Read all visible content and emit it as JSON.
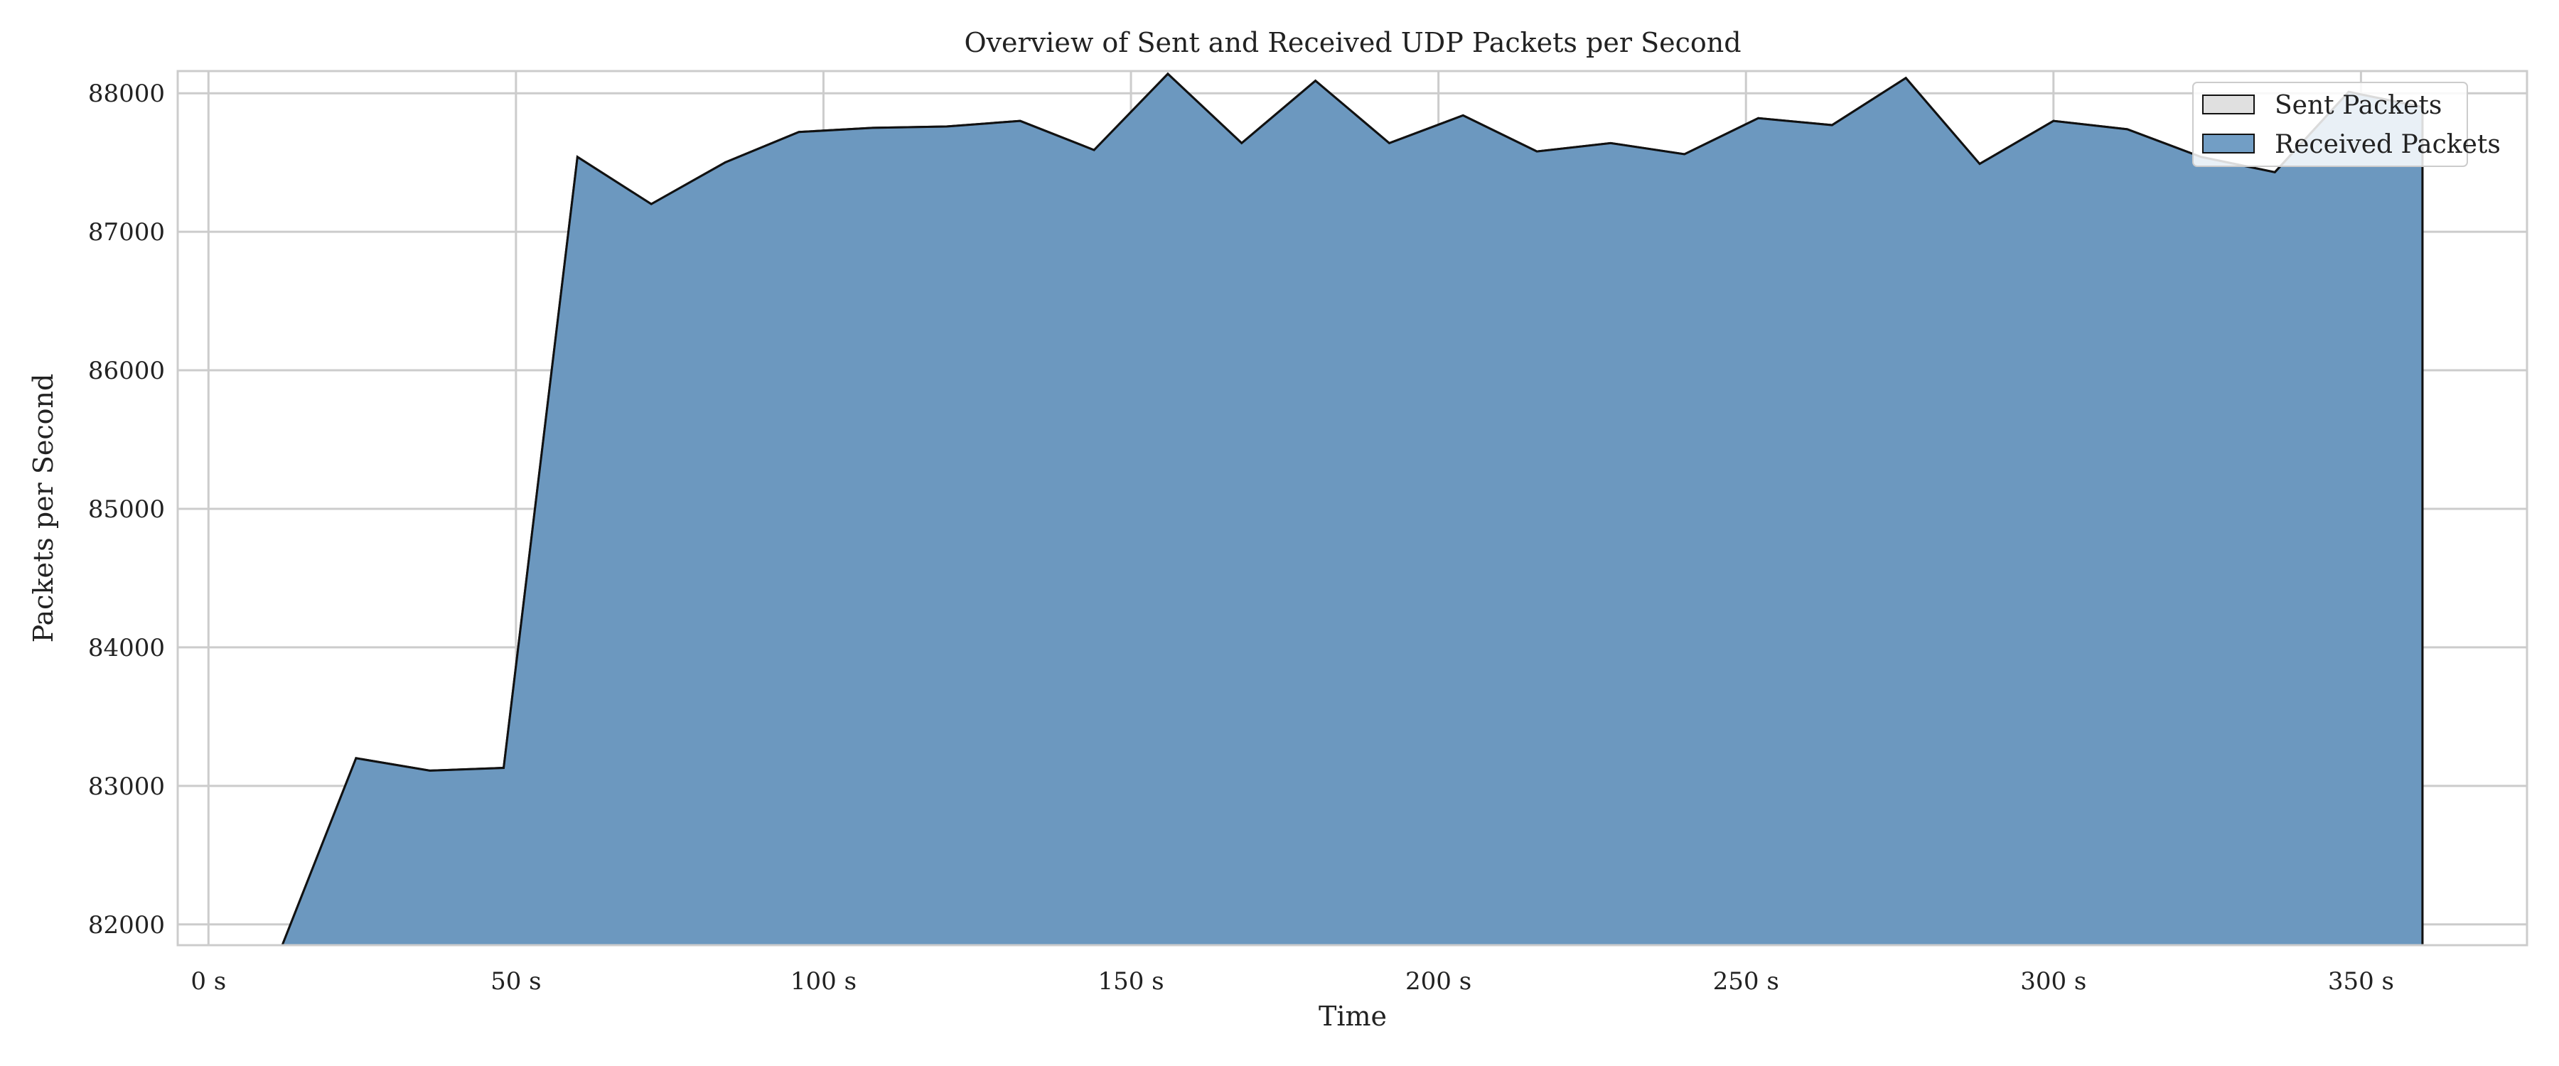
{
  "chart_data": {
    "type": "area",
    "title": "Overview of Sent and Received UDP Packets per Second",
    "xlabel": "Time",
    "ylabel": "Packets per Second",
    "xlim": [
      -5,
      377
    ],
    "ylim": [
      81850,
      88160
    ],
    "x_ticks": [
      0,
      50,
      100,
      150,
      200,
      250,
      300,
      350
    ],
    "x_tick_labels": [
      "0 s",
      "50 s",
      "100 s",
      "150 s",
      "200 s",
      "250 s",
      "300 s",
      "350 s"
    ],
    "y_ticks": [
      82000,
      83000,
      84000,
      85000,
      86000,
      87000,
      88000
    ],
    "y_tick_labels": [
      "82000",
      "83000",
      "84000",
      "85000",
      "86000",
      "87000",
      "88000"
    ],
    "grid": true,
    "legend_position": "top-right",
    "series": [
      {
        "name": "Sent Packets",
        "color": "#e0e0e0",
        "x": [
          0,
          12,
          24,
          36,
          48,
          60,
          72,
          84,
          96,
          108,
          120,
          132,
          144,
          156,
          168,
          180,
          192,
          204,
          216,
          228,
          240,
          252,
          264,
          276,
          288,
          300,
          312,
          324,
          336,
          348,
          360
        ],
        "values": [
          81700,
          81850,
          83200,
          83110,
          83130,
          87540,
          87200,
          87500,
          87720,
          87750,
          87760,
          87800,
          87590,
          88140,
          87640,
          88090,
          87640,
          87840,
          87580,
          87640,
          87560,
          87820,
          87770,
          88110,
          87490,
          87800,
          87740,
          87540,
          87430,
          88010,
          87900
        ]
      },
      {
        "name": "Received Packets",
        "color": "#4f86b6",
        "x": [
          0,
          12,
          24,
          36,
          48,
          60,
          72,
          84,
          96,
          108,
          120,
          132,
          144,
          156,
          168,
          180,
          192,
          204,
          216,
          228,
          240,
          252,
          264,
          276,
          288,
          300,
          312,
          324,
          336,
          348,
          360
        ],
        "values": [
          81700,
          81850,
          83200,
          83110,
          83130,
          87540,
          87200,
          87500,
          87720,
          87750,
          87760,
          87800,
          87590,
          88140,
          87640,
          88090,
          87640,
          87840,
          87580,
          87640,
          87560,
          87820,
          87770,
          88110,
          87490,
          87800,
          87740,
          87540,
          87430,
          88010,
          87900
        ]
      }
    ],
    "colors": {
      "grid": "#cccccc",
      "frame": "#cccccc",
      "text": "#222222",
      "edge": "#111111"
    }
  }
}
